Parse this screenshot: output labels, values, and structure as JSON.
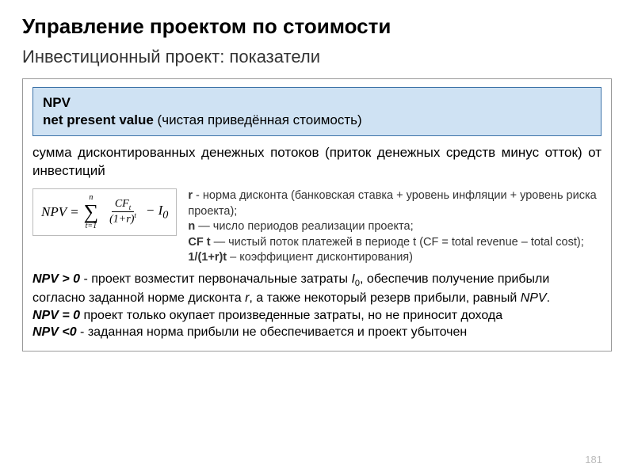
{
  "colors": {
    "header_bg": "#cfe2f3",
    "header_border": "#3d73a8",
    "box_border": "#999999",
    "formula_border": "#bbbbbb",
    "page_num_color": "#bbbbbb",
    "text": "#000000",
    "text_secondary": "#333333",
    "background": "#ffffff"
  },
  "typography": {
    "title_size": 26,
    "subtitle_size": 22,
    "body_size": 17,
    "legend_size": 14.5,
    "interp_size": 16,
    "font_family": "Verdana, Geneva, sans-serif",
    "formula_font": "Times New Roman, serif"
  },
  "title": "Управление проектом по стоимости",
  "subtitle": "Инвестиционный проект: показатели",
  "npv_header": {
    "line1": "NPV",
    "line2_bold": "net present value",
    "line2_rest": " (чистая приведённая стоимость)"
  },
  "definition": "сумма дисконтированных денежных потоков (приток денежных средств минус отток) от инвестиций",
  "formula": {
    "lhs": "NPV",
    "eq": " = ",
    "sigma_upper": "n",
    "sigma_symbol": "∑",
    "sigma_lower": "t=1",
    "frac_num_a": "CF",
    "frac_num_sub": "t",
    "frac_den_a": "(1+r)",
    "frac_den_sup": "t",
    "tail_a": " − I",
    "tail_sub": "0"
  },
  "legend": {
    "r_label": "r",
    "r_text": " - норма дисконта (банковская ставка + уровень инфляции + уровень риска проекта);",
    "n_label": "n",
    "n_text": " — число периодов реализации проекта;",
    "cf_label": "CF t",
    "cf_text": " — чистый поток платежей в периоде t (CF = total revenue – total cost);",
    "disc_label": "1/(1+r)t",
    "disc_text": " – коэффициент дисконтирования)"
  },
  "interp": {
    "gt0_label": "NPV > 0",
    "gt0_a": " - проект возместит первоначальные затраты ",
    "gt0_I": "I",
    "gt0_Isub": "0",
    "gt0_b": ", обеспечив получение прибыли согласно заданной норме дисконта ",
    "gt0_r": "r",
    "gt0_c": ", а также некоторый резерв прибыли, равный ",
    "gt0_npv": "NPV",
    "gt0_d": ".",
    "eq0_label": "NPV = 0",
    "eq0_text": " проект только окупает произведенные затраты, но не приносит дохода",
    "lt0_label": "NPV <0",
    "lt0_text": " - заданная норма прибыли не обеспечивается и проект убыточен"
  },
  "page_number": "181"
}
